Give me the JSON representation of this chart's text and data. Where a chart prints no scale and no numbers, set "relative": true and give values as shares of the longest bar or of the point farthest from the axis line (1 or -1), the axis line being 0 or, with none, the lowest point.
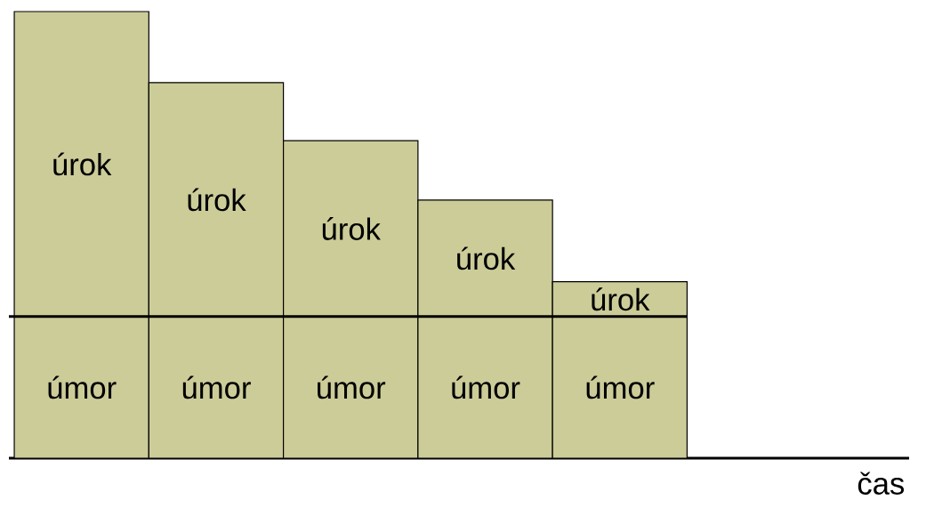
{
  "chart_data": {
    "type": "bar",
    "stacked": true,
    "relative": true,
    "annotations": [
      "čas"
    ],
    "categories": [
      null,
      null,
      null,
      null,
      null
    ],
    "series": [
      {
        "name": "úmor",
        "color": "#cccc99",
        "values": [
          0.317,
          0.317,
          0.317,
          0.317,
          0.317
        ]
      },
      {
        "name": "úrok",
        "color": "#cccc99",
        "values": [
          0.683,
          0.524,
          0.394,
          0.261,
          0.078
        ]
      }
    ],
    "ref_lines": [
      {
        "axis": "y",
        "value": 0.317
      }
    ]
  }
}
